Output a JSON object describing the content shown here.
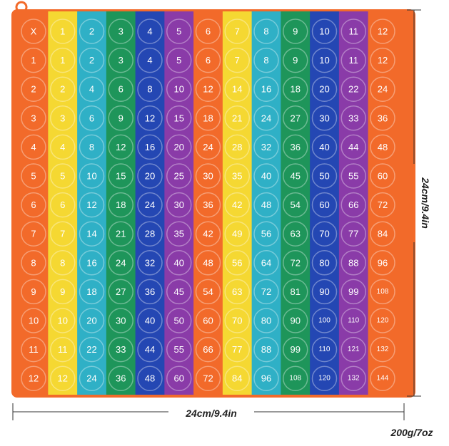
{
  "table": {
    "rows": [
      [
        "X",
        1,
        2,
        3,
        4,
        5,
        6,
        7,
        8,
        9,
        10,
        11,
        12
      ],
      [
        1,
        1,
        2,
        3,
        4,
        5,
        6,
        7,
        8,
        9,
        10,
        11,
        12
      ],
      [
        2,
        2,
        4,
        6,
        8,
        10,
        12,
        14,
        16,
        18,
        20,
        22,
        24
      ],
      [
        3,
        3,
        6,
        9,
        12,
        15,
        18,
        21,
        24,
        27,
        30,
        33,
        36
      ],
      [
        4,
        4,
        8,
        12,
        16,
        20,
        24,
        28,
        32,
        36,
        40,
        44,
        48
      ],
      [
        5,
        5,
        10,
        15,
        20,
        25,
        30,
        35,
        40,
        45,
        50,
        55,
        60
      ],
      [
        6,
        6,
        12,
        18,
        24,
        30,
        36,
        42,
        48,
        54,
        60,
        66,
        72
      ],
      [
        7,
        7,
        14,
        21,
        28,
        35,
        42,
        49,
        56,
        63,
        70,
        77,
        84
      ],
      [
        8,
        8,
        16,
        24,
        32,
        40,
        48,
        56,
        64,
        72,
        80,
        88,
        96
      ],
      [
        9,
        9,
        18,
        27,
        36,
        45,
        54,
        63,
        72,
        81,
        90,
        99,
        108
      ],
      [
        10,
        10,
        20,
        30,
        40,
        50,
        60,
        70,
        80,
        90,
        100,
        110,
        120
      ],
      [
        11,
        11,
        22,
        33,
        44,
        55,
        66,
        77,
        88,
        99,
        110,
        121,
        132
      ],
      [
        12,
        12,
        24,
        36,
        48,
        60,
        72,
        84,
        96,
        108,
        120,
        132,
        144
      ]
    ]
  },
  "dimensions": {
    "height": "24cm/9.4in",
    "width": "24cm/9.4in",
    "weight": "200g/7oz"
  }
}
